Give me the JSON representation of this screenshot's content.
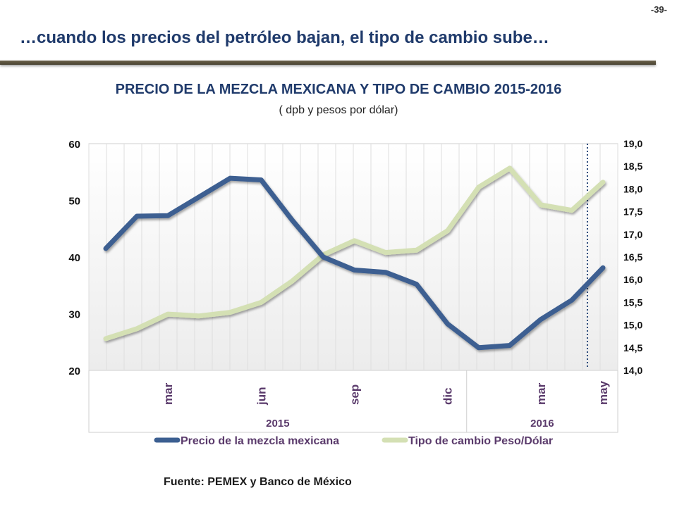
{
  "page_number": "-39-",
  "headline": "…cuando los precios del petróleo bajan, el tipo de cambio sube…",
  "source": "Fuente: PEMEX y Banco de México",
  "colors": {
    "oil": "#3c5f91",
    "fx": "#d4e0b4",
    "title": "#1f3a6b",
    "month_label": "#5a3a6b"
  },
  "chart_data": {
    "type": "line",
    "title": "PRECIO DE LA MEZCLA MEXICANA Y TIPO DE CAMBIO  2015-2016",
    "subtitle": "( dpb y pesos por dólar)",
    "x_month_labels": [
      {
        "index": 2,
        "label": "mar"
      },
      {
        "index": 5,
        "label": "jun"
      },
      {
        "index": 8,
        "label": "sep"
      },
      {
        "index": 11,
        "label": "dic"
      },
      {
        "index": 14,
        "label": "mar"
      },
      {
        "index": 16,
        "label": "may"
      }
    ],
    "year_labels": [
      {
        "label": "2015",
        "from": 0,
        "to": 11
      },
      {
        "label": "2016",
        "from": 12,
        "to": 16
      }
    ],
    "y_left": {
      "min": 20,
      "max": 60,
      "ticks": [
        "20",
        "30",
        "40",
        "50",
        "60"
      ]
    },
    "y_right": {
      "min": 14.0,
      "max": 19.0,
      "ticks": [
        "14,0",
        "14,5",
        "15,0",
        "15,5",
        "16,0",
        "16,5",
        "17,0",
        "17,5",
        "18,0",
        "18,5",
        "19,0"
      ]
    },
    "marker_index": 15.5,
    "legend_position": "bottom",
    "grid": true,
    "series": [
      {
        "name": "Precio de la mezcla mexicana",
        "axis": "left",
        "values": [
          41.5,
          47.2,
          47.3,
          50.6,
          53.9,
          53.6,
          46.5,
          40.0,
          37.7,
          37.3,
          35.2,
          28.2,
          24.0,
          24.4,
          29.0,
          32.4,
          38.1
        ]
      },
      {
        "name": "Tipo de cambio Peso/Dólar",
        "axis": "right",
        "values": [
          14.7,
          14.92,
          15.24,
          15.2,
          15.28,
          15.5,
          15.97,
          16.55,
          16.86,
          16.6,
          16.65,
          17.08,
          18.04,
          18.46,
          17.65,
          17.53,
          18.15
        ]
      }
    ]
  }
}
